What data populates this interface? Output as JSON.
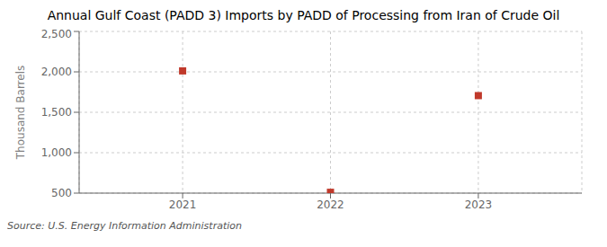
{
  "chart_data": {
    "type": "scatter",
    "title": "Annual Gulf Coast (PADD 3) Imports by PADD of Processing from Iran of Crude Oil",
    "ylabel": "Thousand Barrels",
    "annotations": [
      "Source: U.S. Energy Information Administration"
    ],
    "x": [
      2021,
      2022,
      2023
    ],
    "values": [
      2012,
      510,
      1706
    ],
    "color": "#c0392b",
    "marker": "square",
    "xlim": [
      2020.3,
      2023.7
    ],
    "xticks": [
      2021,
      2022,
      2023
    ],
    "ylim": [
      500,
      2500
    ],
    "yticks": [
      500,
      {
        "value": 1000,
        "label": "1,000"
      },
      {
        "value": 1500,
        "label": "1,500"
      },
      {
        "value": 2000,
        "label": "2,000"
      },
      {
        "value": 2500,
        "label": "2,500"
      }
    ],
    "grid": true
  }
}
